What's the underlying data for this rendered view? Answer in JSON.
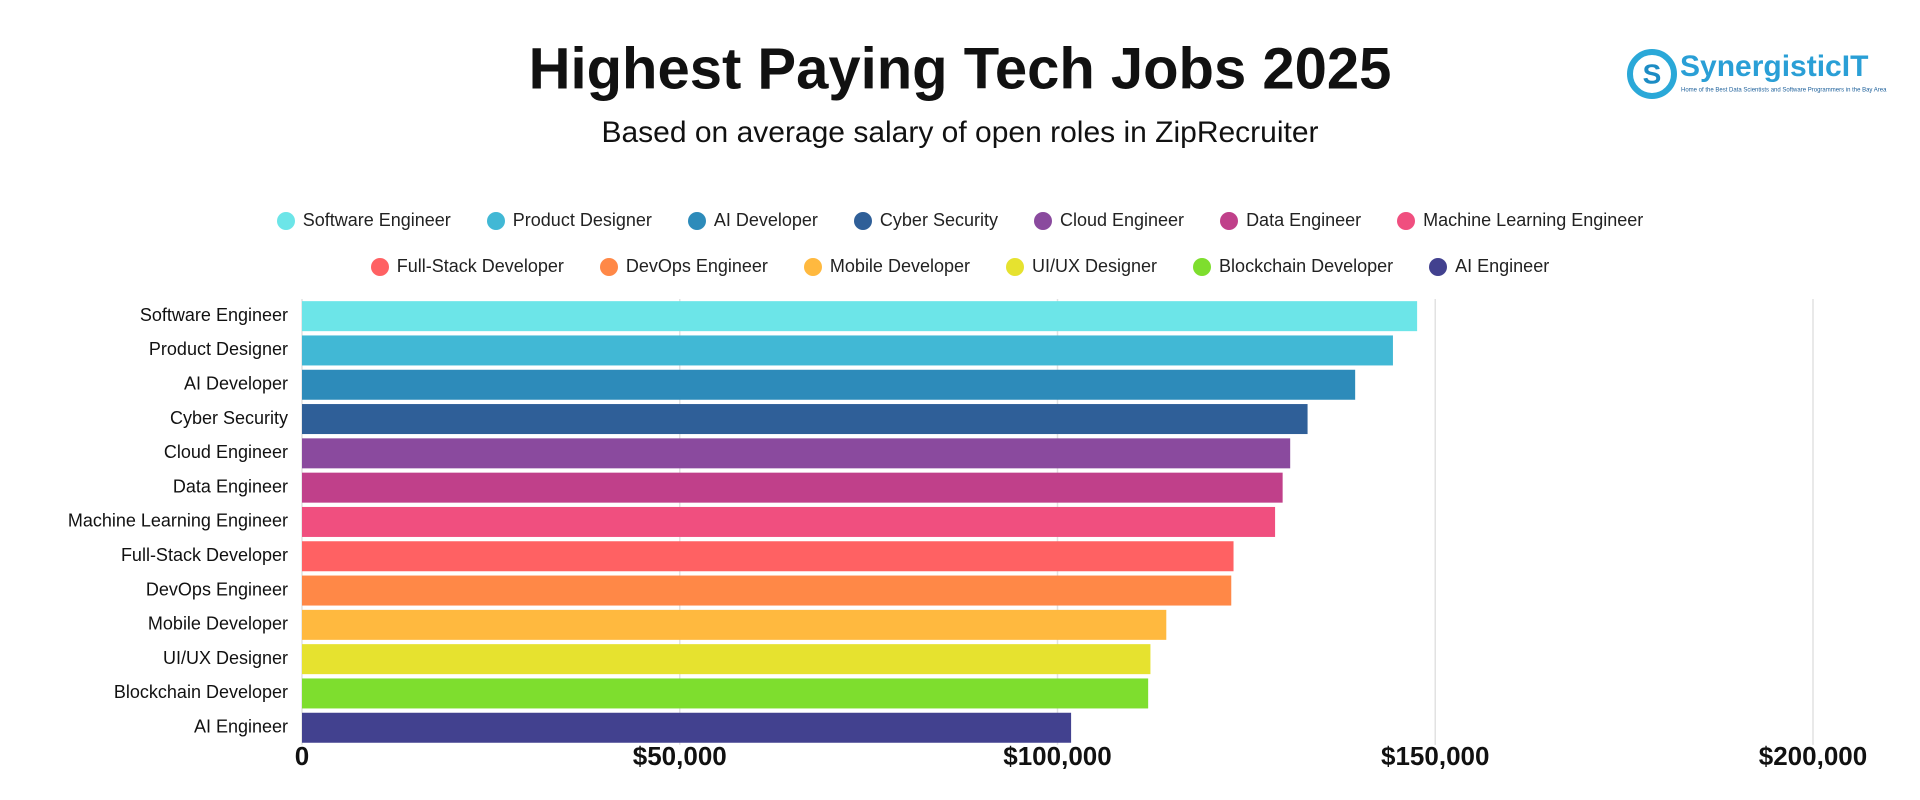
{
  "chart_data": {
    "type": "hbar",
    "title": "Highest Paying Tech Jobs 2025",
    "subtitle": "Based on average salary of open roles in ZipRecruiter",
    "logo": "SynergisticIT",
    "logo_tagline": "Home of the Best Data Scientists and Software Programmers in the Bay Area",
    "categories": [
      "Software Engineer",
      "Product Designer",
      "AI Developer",
      "Cyber Security",
      "Cloud Engineer",
      "Data Engineer",
      "Machine Learning Engineer",
      "Full-Stack Developer",
      "DevOps Engineer",
      "Mobile Developer",
      "UI/UX Designer",
      "Blockchain Developer",
      "AI Engineer"
    ],
    "values": [
      147600,
      144400,
      139400,
      133100,
      130800,
      129800,
      128800,
      123300,
      123000,
      114400,
      112300,
      112000,
      101800
    ],
    "colors": [
      "#6ce5e8",
      "#41b8d5",
      "#2d8bba",
      "#2f5f98",
      "#8a4a9e",
      "#c0408a",
      "#f04f7f",
      "#ff6163",
      "#ff8847",
      "#ffb93f",
      "#e6e22f",
      "#7ede2e",
      "#42418f"
    ],
    "xlim": [
      0,
      200000
    ],
    "xticks": [
      0,
      {
        "value": 50000,
        "label": "$50,000"
      },
      {
        "value": 100000,
        "label": "$100,000"
      },
      {
        "value": 150000,
        "label": "$150,000"
      },
      {
        "value": 200000,
        "label": "$200,000"
      }
    ],
    "grid": true
  }
}
